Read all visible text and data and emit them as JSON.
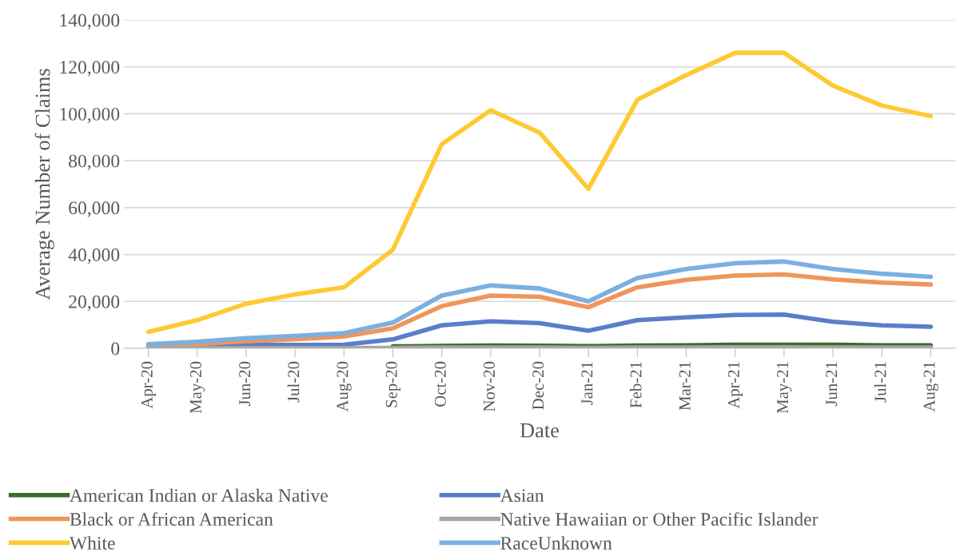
{
  "chart_data": {
    "type": "line",
    "xlabel": "Date",
    "ylabel": "Average Number of Claims",
    "categories": [
      "Apr-20",
      "May-20",
      "Jun-20",
      "Jul-20",
      "Aug-20",
      "Sep-20",
      "Oct-20",
      "Nov-20",
      "Dec-20",
      "Jan-21",
      "Feb-21",
      "Mar-21",
      "Apr-21",
      "May-21",
      "Jun-21",
      "Jul-21",
      "Aug-21"
    ],
    "series": [
      {
        "name": "American Indian or Alaska Native",
        "color": "#3d6b2a",
        "values": [
          null,
          null,
          null,
          null,
          null,
          800,
          1000,
          1200,
          1100,
          900,
          1200,
          1300,
          1500,
          1500,
          1500,
          1300,
          1300
        ]
      },
      {
        "name": "Asian",
        "color": "#5b7ec9",
        "values": [
          1200,
          1300,
          1400,
          1400,
          1500,
          3800,
          9800,
          11500,
          10700,
          7500,
          12000,
          13200,
          14200,
          14400,
          11300,
          9800,
          9200
        ]
      },
      {
        "name": "Black or African American",
        "color": "#f0955a",
        "values": [
          1000,
          1800,
          3000,
          3800,
          5000,
          8500,
          18000,
          22500,
          22000,
          17500,
          26000,
          29200,
          31000,
          31500,
          29400,
          28000,
          27200
        ]
      },
      {
        "name": "Native Hawaiian or Other Pacific Islander",
        "color": "#a5a5a5",
        "values": [
          100,
          100,
          100,
          100,
          100,
          200,
          300,
          300,
          300,
          200,
          300,
          300,
          400,
          400,
          300,
          300,
          300
        ]
      },
      {
        "name": "White",
        "color": "#ffc932",
        "values": [
          7000,
          12000,
          19000,
          23000,
          26000,
          42000,
          87000,
          101500,
          92000,
          68000,
          106000,
          116500,
          126000,
          126000,
          112000,
          103500,
          99000
        ]
      },
      {
        "name": "RaceUnknown",
        "color": "#7bafe0",
        "values": [
          1800,
          2800,
          4300,
          5300,
          6500,
          11000,
          22500,
          26800,
          25500,
          20000,
          30000,
          33800,
          36300,
          37000,
          33800,
          31800,
          30500
        ]
      }
    ],
    "ylim": [
      0,
      140000
    ],
    "yticks": [
      {
        "value": 0,
        "label": "0"
      },
      {
        "value": 20000,
        "label": "20,000"
      },
      {
        "value": 40000,
        "label": "40,000"
      },
      {
        "value": 60000,
        "label": "60,000"
      },
      {
        "value": 80000,
        "label": "80,000"
      },
      {
        "value": 100000,
        "label": "100,000"
      },
      {
        "value": 120000,
        "label": "120,000"
      },
      {
        "value": 140000,
        "label": "140,000"
      }
    ],
    "grid": "y",
    "legend": "bottom",
    "marker": "none",
    "line_style": "solid"
  }
}
